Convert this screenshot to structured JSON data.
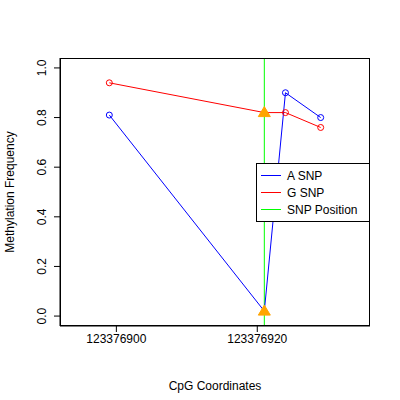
{
  "chart_data": {
    "type": "line",
    "x_label": "CpG Coordinates",
    "y_label": "Methylation Frequency",
    "x": [
      123376899,
      123376921,
      123376924,
      123376929
    ],
    "series": [
      {
        "name": "A SNP",
        "color": "#0000ff",
        "values": [
          0.81,
          0.02,
          0.9,
          0.8
        ],
        "marker": "circle"
      },
      {
        "name": "G SNP",
        "color": "#ff0000",
        "values": [
          0.94,
          0.82,
          0.82,
          0.76
        ],
        "marker": "circle"
      }
    ],
    "reference_line": {
      "x": 123376921,
      "name": "SNP Position",
      "color": "#00ff00"
    },
    "xlim": [
      123376892,
      123376936
    ],
    "ylim": [
      -0.04,
      1.04
    ],
    "xticks": [
      123376900,
      123376920
    ],
    "yticks": [
      {
        "value": 0,
        "label": "0.0"
      },
      0.2,
      0.4,
      0.6,
      0.8,
      {
        "value": 1,
        "label": "1.0"
      }
    ],
    "legend": "right",
    "grid": false
  }
}
